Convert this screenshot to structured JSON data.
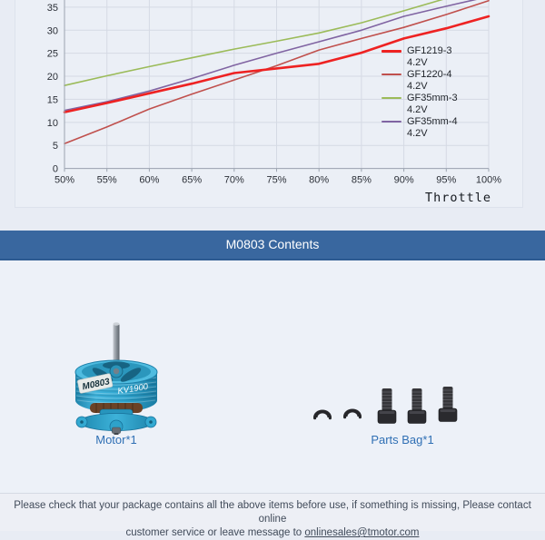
{
  "chart_data": {
    "type": "line",
    "title": "",
    "xlabel": "Throttle",
    "ylabel": "",
    "x": [
      50,
      55,
      60,
      65,
      70,
      75,
      80,
      85,
      90,
      95,
      100
    ],
    "x_tick_labels": [
      "50%",
      "55%",
      "60%",
      "65%",
      "70%",
      "75%",
      "80%",
      "85%",
      "90%",
      "95%",
      "100%"
    ],
    "y_ticks": [
      0,
      5,
      10,
      15,
      20,
      25,
      30,
      35
    ],
    "ylim_visible": [
      0,
      36.5
    ],
    "grid": true,
    "legend_position": "right-inside",
    "series": [
      {
        "name": "GF1219-3",
        "voltage": "4.2V",
        "color": "#ee2222",
        "width": 2.6,
        "values": [
          12.2,
          14.2,
          16.3,
          18.4,
          20.7,
          21.7,
          22.7,
          25.1,
          28.2,
          30.4,
          33.0
        ]
      },
      {
        "name": "GF1220-4",
        "voltage": "4.2V",
        "color": "#c0504d",
        "width": 1.6,
        "values": [
          5.4,
          9.0,
          12.9,
          16.1,
          19.2,
          22.3,
          25.7,
          28.2,
          30.6,
          33.4,
          36.4
        ]
      },
      {
        "name": "GF35mm-3",
        "voltage": "4.2V",
        "color": "#9bbb59",
        "width": 1.6,
        "values": [
          18.0,
          20.1,
          22.1,
          24.0,
          25.9,
          27.6,
          29.4,
          31.6,
          34.2,
          36.9,
          39.5
        ]
      },
      {
        "name": "GF35mm-4",
        "voltage": "4.2V",
        "color": "#8064a2",
        "width": 1.6,
        "values": [
          12.6,
          14.5,
          16.8,
          19.5,
          22.4,
          25.0,
          27.5,
          30.0,
          33.0,
          35.2,
          37.3
        ]
      }
    ]
  },
  "header": {
    "title": "M0803 Contents"
  },
  "contents": {
    "motor": {
      "label": "Motor*1",
      "marking_model": "M0803",
      "marking_kv": "KV1900"
    },
    "parts": {
      "label": "Parts Bag*1"
    }
  },
  "footer": {
    "line1": "Please check that your package contains all the above items before use, if something is missing, Please contact online",
    "line2_prefix": "customer service or leave message to ",
    "email": "onlinesales@tmotor.com"
  },
  "colors": {
    "header_bar": "#39679f",
    "header_bar_edge": "#2d5a91",
    "caption_blue": "#2f6fb4",
    "page_background": "#e8ecf4",
    "gridline": "#d5dae4",
    "axis": "#9ba3b0"
  }
}
